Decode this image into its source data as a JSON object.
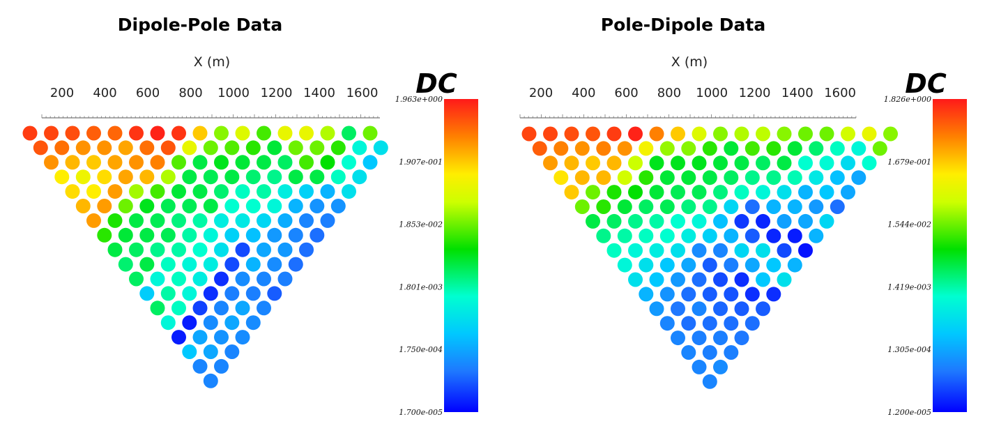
{
  "chart_data": [
    {
      "type": "scatter",
      "subtype": "pseudosection",
      "title": "Dipole-Pole Data",
      "xlabel": "X (m)",
      "x_ticks": [
        200,
        400,
        600,
        800,
        1000,
        1200,
        1400,
        1600
      ],
      "colorbar": {
        "title": "DC",
        "labels": [
          "1.963e+000",
          "1.907e-001",
          "1.853e-002",
          "1.801e-003",
          "1.750e-004",
          "1.700e-005"
        ]
      },
      "grid": false,
      "legend_placement": "right",
      "rows_color_level": [
        [
          0.96,
          0.95,
          0.94,
          0.92,
          0.91,
          0.97,
          0.99,
          0.97,
          0.8,
          0.62,
          0.7,
          0.57,
          0.72,
          0.72,
          0.65,
          0.45,
          0.6
        ],
        [
          0.93,
          0.9,
          0.86,
          0.86,
          0.84,
          0.9,
          0.93,
          0.72,
          0.6,
          0.58,
          0.55,
          0.48,
          0.6,
          0.6,
          0.55,
          0.35,
          0.3
        ],
        [
          0.86,
          0.82,
          0.8,
          0.84,
          0.86,
          0.88,
          0.58,
          0.47,
          0.5,
          0.48,
          0.47,
          0.45,
          0.57,
          0.52,
          0.37,
          0.25
        ],
        [
          0.76,
          0.73,
          0.78,
          0.84,
          0.82,
          0.65,
          0.47,
          0.46,
          0.47,
          0.44,
          0.42,
          0.47,
          0.47,
          0.38,
          0.3
        ],
        [
          0.78,
          0.76,
          0.85,
          0.64,
          0.57,
          0.48,
          0.47,
          0.44,
          0.38,
          0.4,
          0.33,
          0.27,
          0.22,
          0.3
        ],
        [
          0.82,
          0.85,
          0.6,
          0.5,
          0.46,
          0.46,
          0.47,
          0.37,
          0.37,
          0.35,
          0.22,
          0.17,
          0.17
        ],
        [
          0.85,
          0.54,
          0.47,
          0.46,
          0.43,
          0.4,
          0.33,
          0.32,
          0.28,
          0.21,
          0.15,
          0.14
        ],
        [
          0.55,
          0.48,
          0.47,
          0.46,
          0.4,
          0.35,
          0.27,
          0.24,
          0.18,
          0.15,
          0.12
        ],
        [
          0.47,
          0.45,
          0.42,
          0.4,
          0.37,
          0.3,
          0.08,
          0.2,
          0.18,
          0.12
        ],
        [
          0.44,
          0.47,
          0.38,
          0.35,
          0.33,
          0.08,
          0.22,
          0.16,
          0.12
        ],
        [
          0.45,
          0.35,
          0.38,
          0.33,
          0.05,
          0.16,
          0.15,
          0.14
        ],
        [
          0.26,
          0.4,
          0.35,
          0.05,
          0.14,
          0.14,
          0.1
        ],
        [
          0.45,
          0.38,
          0.07,
          0.15,
          0.2,
          0.15
        ],
        [
          0.35,
          0.03,
          0.16,
          0.2,
          0.16
        ],
        [
          0.03,
          0.2,
          0.17,
          0.16
        ],
        [
          0.25,
          0.2,
          0.15
        ],
        [
          0.15,
          0.15
        ],
        [
          0.15
        ]
      ]
    },
    {
      "type": "scatter",
      "subtype": "pseudosection",
      "title": "Pole-Dipole Data",
      "xlabel": "X (m)",
      "x_ticks": [
        200,
        400,
        600,
        800,
        1000,
        1200,
        1400,
        1600
      ],
      "colorbar": {
        "title": "DC",
        "labels": [
          "1.826e+000",
          "1.679e-001",
          "1.544e-002",
          "1.419e-003",
          "1.305e-004",
          "1.200e-005"
        ]
      },
      "grid": false,
      "legend_placement": "right",
      "rows_color_level": [
        [
          0.95,
          0.95,
          0.94,
          0.93,
          0.96,
          0.99,
          0.88,
          0.8,
          0.7,
          0.62,
          0.65,
          0.66,
          0.62,
          0.6,
          0.6,
          0.68,
          0.72,
          0.62
        ],
        [
          0.92,
          0.88,
          0.86,
          0.88,
          0.86,
          0.74,
          0.63,
          0.62,
          0.55,
          0.48,
          0.57,
          0.55,
          0.48,
          0.44,
          0.38,
          0.35,
          0.6
        ],
        [
          0.85,
          0.82,
          0.8,
          0.82,
          0.67,
          0.5,
          0.5,
          0.5,
          0.48,
          0.47,
          0.45,
          0.47,
          0.37,
          0.36,
          0.29,
          0.37
        ],
        [
          0.77,
          0.82,
          0.82,
          0.68,
          0.55,
          0.48,
          0.48,
          0.47,
          0.45,
          0.42,
          0.42,
          0.39,
          0.32,
          0.24,
          0.2
        ],
        [
          0.8,
          0.6,
          0.54,
          0.52,
          0.48,
          0.46,
          0.46,
          0.43,
          0.38,
          0.35,
          0.3,
          0.22,
          0.25,
          0.2
        ],
        [
          0.6,
          0.55,
          0.48,
          0.45,
          0.46,
          0.43,
          0.42,
          0.28,
          0.12,
          0.22,
          0.22,
          0.18,
          0.12
        ],
        [
          0.47,
          0.45,
          0.42,
          0.4,
          0.37,
          0.35,
          0.24,
          0.06,
          0.04,
          0.19,
          0.2,
          0.28
        ],
        [
          0.42,
          0.4,
          0.38,
          0.37,
          0.33,
          0.27,
          0.22,
          0.1,
          0.04,
          0.03,
          0.22
        ],
        [
          0.38,
          0.35,
          0.33,
          0.3,
          0.16,
          0.15,
          0.28,
          0.3,
          0.08,
          0.02
        ],
        [
          0.35,
          0.3,
          0.25,
          0.2,
          0.1,
          0.14,
          0.2,
          0.25,
          0.22
        ],
        [
          0.3,
          0.25,
          0.18,
          0.12,
          0.08,
          0.05,
          0.25,
          0.3
        ],
        [
          0.22,
          0.17,
          0.12,
          0.1,
          0.09,
          0.05,
          0.05
        ],
        [
          0.18,
          0.13,
          0.15,
          0.11,
          0.1,
          0.1
        ],
        [
          0.15,
          0.12,
          0.12,
          0.12,
          0.12
        ],
        [
          0.15,
          0.14,
          0.14,
          0.13
        ],
        [
          0.15,
          0.14,
          0.14
        ],
        [
          0.15,
          0.16
        ],
        [
          0.15
        ]
      ]
    }
  ]
}
